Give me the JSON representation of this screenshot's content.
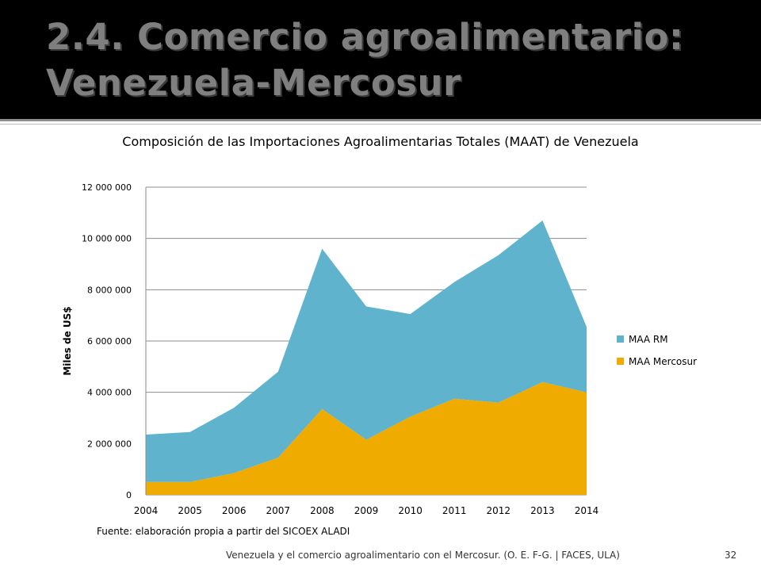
{
  "slide": {
    "title": "2.4. Comercio agroalimentario: Venezuela-Mercosur",
    "source": "Fuente: elaboración propia a partir del SICOEX ALADI",
    "footer": "Venezuela y el comercio agroalimentario con el Mercosur. (O. E. F-G. | FACES, ULA)",
    "page_number": "32"
  },
  "colors": {
    "rm": "#5fb3cc",
    "mercosur": "#f0ab00",
    "title_text": "#7f7f7f",
    "band": "#000000"
  },
  "chart_data": {
    "type": "area",
    "stacked": true,
    "title": "Composición de las Importaciones Agroalimentarias Totales (MAAT) de Venezuela",
    "xlabel": "",
    "ylabel": "Miles de US$",
    "x": [
      "2004",
      "2005",
      "2006",
      "2007",
      "2008",
      "2009",
      "2010",
      "2011",
      "2012",
      "2013",
      "2014"
    ],
    "ylim": [
      0,
      12000000
    ],
    "yticks": [
      0,
      2000000,
      4000000,
      6000000,
      8000000,
      10000000,
      12000000
    ],
    "ytick_labels": [
      "0",
      "2 000 000",
      "4 000 000",
      "6 000 000",
      "8 000 000",
      "10 000 000",
      "12 000 000"
    ],
    "grid": "horizontal",
    "legend": "right",
    "series": [
      {
        "name": "MAA Mercosur",
        "color": "#f0ab00",
        "values": [
          500000,
          500000,
          850000,
          1450000,
          3350000,
          2150000,
          3050000,
          3750000,
          3600000,
          4400000,
          4000000
        ]
      },
      {
        "name": "MAA RM",
        "color": "#5fb3cc",
        "values": [
          1850000,
          1950000,
          2550000,
          3350000,
          6250000,
          5200000,
          4000000,
          4550000,
          5750000,
          6300000,
          2550000
        ]
      }
    ]
  }
}
